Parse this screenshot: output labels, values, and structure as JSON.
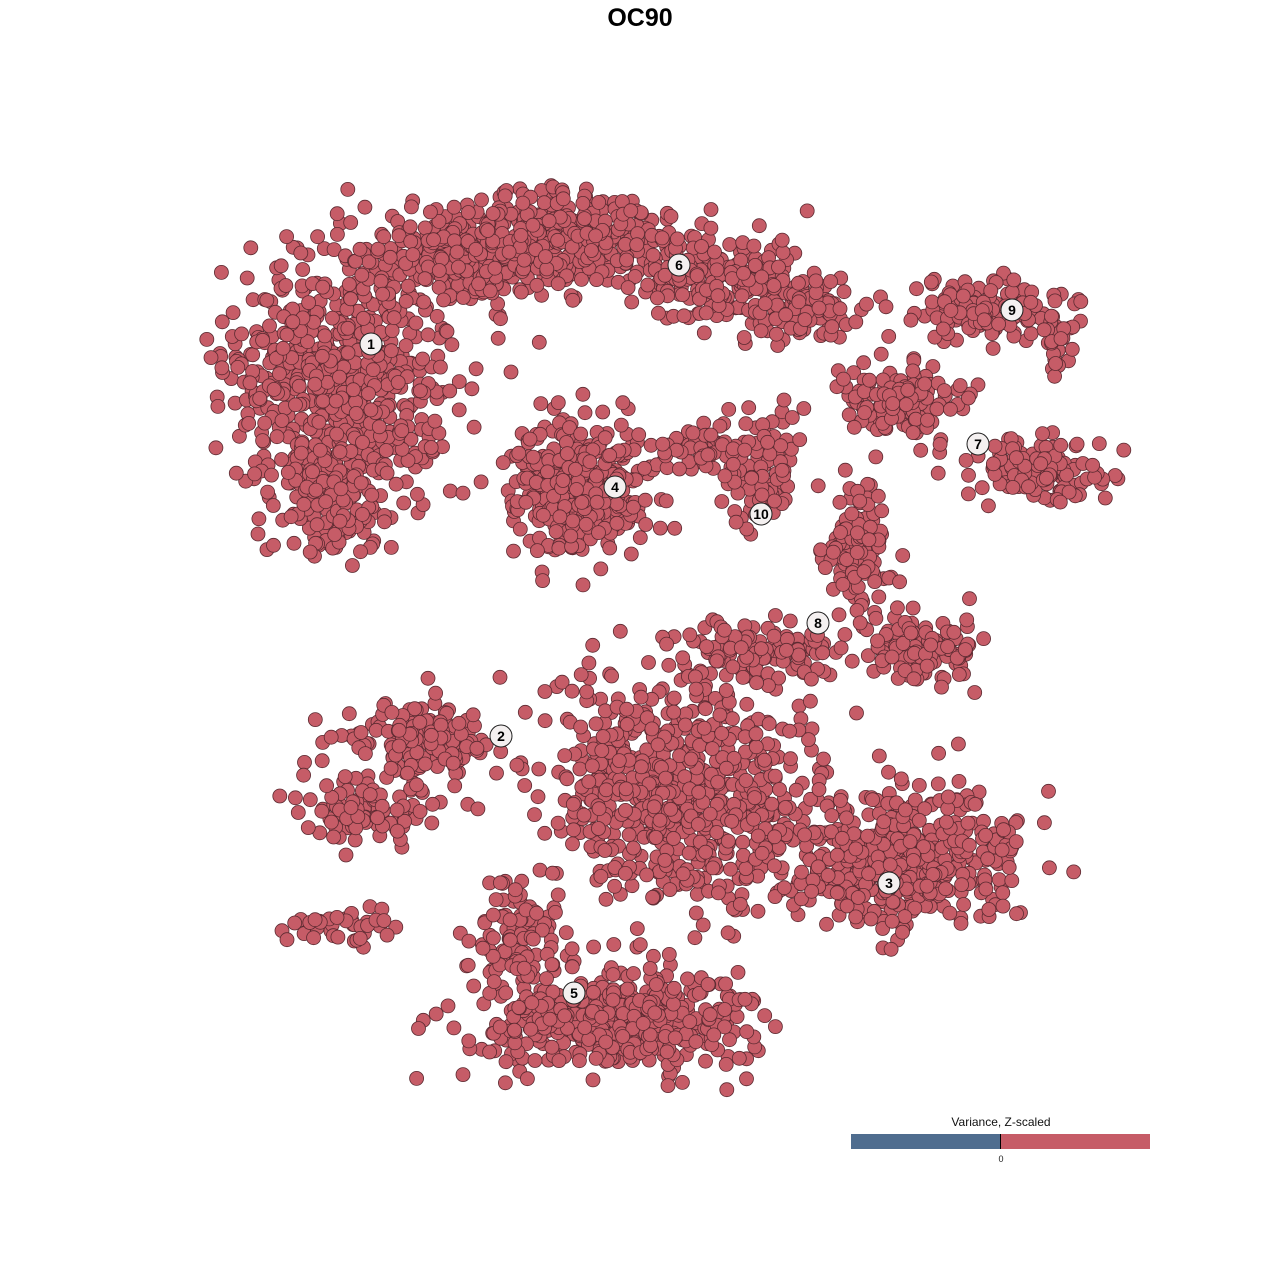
{
  "chart_data": {
    "type": "scatter",
    "title": "OC90",
    "xlabel": "",
    "ylabel": "",
    "axes_visible": false,
    "grid": false,
    "point_color": "#c65c67",
    "point_outline": "#5b2a31",
    "clusters": [
      {
        "label": "1",
        "x": -26.9,
        "y": 29.6
      },
      {
        "label": "2",
        "x": -13.9,
        "y": -9.6
      },
      {
        "label": "3",
        "x": 24.9,
        "y": -24.3
      },
      {
        "label": "4",
        "x": -2.5,
        "y": 15.3
      },
      {
        "label": "5",
        "x": -6.6,
        "y": -35.3
      },
      {
        "label": "6",
        "x": 3.9,
        "y": 37.5
      },
      {
        "label": "7",
        "x": 33.8,
        "y": 19.6
      },
      {
        "label": "8",
        "x": 17.8,
        "y": 1.7
      },
      {
        "label": "9",
        "x": 37.2,
        "y": 33.0
      },
      {
        "label": "10",
        "x": 12.1,
        "y": 12.6
      }
    ],
    "legend": {
      "title": "Variance, Z-scaled",
      "tick_label": "0",
      "low_color": "#4f6d8f",
      "high_color": "#c65c67",
      "placement": "bottom-right"
    }
  }
}
